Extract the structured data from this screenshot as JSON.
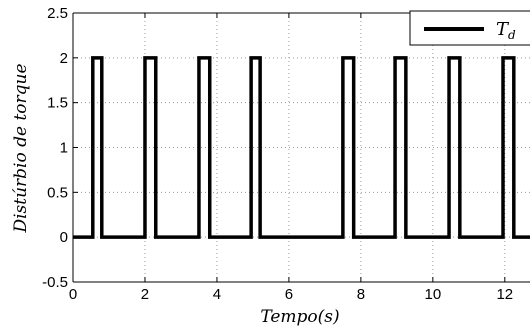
{
  "chart_data": {
    "type": "line",
    "xlabel": "Tempo(s)",
    "ylabel": "Distúrbio de torque",
    "xlim": [
      0,
      12.7
    ],
    "ylim": [
      -0.5,
      2.5
    ],
    "x_ticks": [
      0,
      2,
      4,
      6,
      8,
      10,
      12
    ],
    "y_ticks": [
      -0.5,
      0,
      0.5,
      1,
      1.5,
      2,
      2.5
    ],
    "x_tick_labels": [
      "0",
      "2",
      "4",
      "6",
      "8",
      "10",
      "12"
    ],
    "y_tick_labels": [
      "-0.5",
      "0",
      "0.5",
      "1",
      "1.5",
      "2",
      "2.5"
    ],
    "grid": true,
    "grid_style": "dotted",
    "legend_position": "top-right",
    "series": [
      {
        "name": "T_d",
        "legend_main": "T",
        "legend_sub": "d",
        "color": "#000000",
        "low": 0,
        "high": 2,
        "pulses": [
          [
            0.55,
            0.8
          ],
          [
            2.0,
            2.3
          ],
          [
            3.5,
            3.8
          ],
          [
            4.95,
            5.2
          ],
          [
            7.5,
            7.8
          ],
          [
            8.95,
            9.25
          ],
          [
            10.45,
            10.75
          ],
          [
            11.95,
            12.25
          ]
        ]
      }
    ]
  }
}
